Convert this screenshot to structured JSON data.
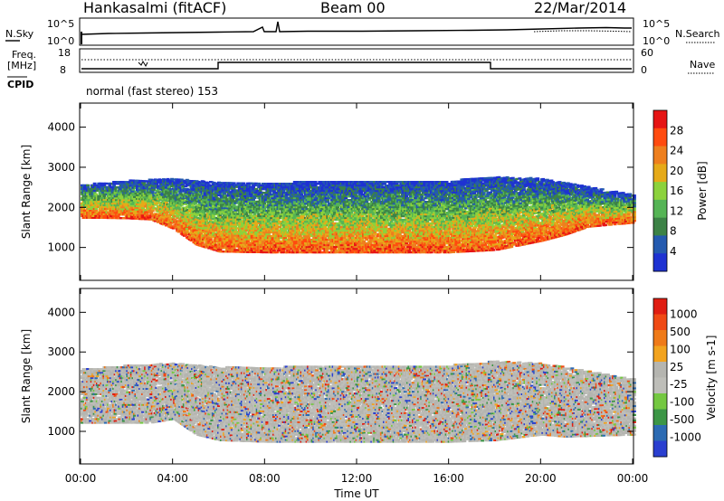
{
  "header": {
    "station": "Hankasalmi (fitACF)",
    "beam": "Beam 00",
    "date": "22/Mar/2014"
  },
  "noise_panel": {
    "left_label": "N.Sky",
    "left_top": "10^5",
    "left_bottom": "10^0",
    "right_top": "10^5",
    "right_bottom": "10^0",
    "right_label": "N.Search"
  },
  "freq_panel": {
    "label_line1": "Freq.",
    "label_line2": "[MHz]",
    "left_top": "18",
    "left_bottom": "8",
    "right_top": "60",
    "right_bottom": "0",
    "right_label": "Nave",
    "cpid_label": "CPID"
  },
  "mode_text": "normal (fast stereo) 153",
  "colors": {
    "power": [
      "#1e32d2",
      "#245aaf",
      "#3c8246",
      "#55b455",
      "#8cd23c",
      "#e6aa19",
      "#ee7f1e",
      "#ff4b0f",
      "#e61414"
    ],
    "velocity": [
      "#2a3fd0",
      "#2c6bb3",
      "#3c9646",
      "#74c841",
      "#bebeb9",
      "#b5b5b0",
      "#f2a31e",
      "#ef7a18",
      "#f04a14",
      "#e01d12"
    ]
  },
  "chart_data": [
    {
      "type": "heatmap",
      "name": "Power",
      "xlabel": "",
      "ylabel": "Slant Range [km]",
      "x_ticks": [
        "00:00",
        "04:00",
        "08:00",
        "12:00",
        "16:00",
        "20:00",
        "00:00"
      ],
      "x_tick_hours": [
        0,
        4,
        8,
        12,
        16,
        20,
        24
      ],
      "xlim_hours": [
        0,
        24
      ],
      "y_ticks": [
        1000,
        2000,
        3000,
        4000
      ],
      "ylim": [
        180,
        4600
      ],
      "colorbar_label": "Power [dB]",
      "colorbar_ticks": [
        4,
        8,
        12,
        16,
        20,
        24,
        28
      ],
      "colorbar_range": [
        0,
        32
      ],
      "echo_band_lower_km": [
        [
          0,
          1720
        ],
        [
          1,
          1720
        ],
        [
          2,
          1710
        ],
        [
          3,
          1680
        ],
        [
          4,
          1450
        ],
        [
          5,
          1050
        ],
        [
          6,
          880
        ],
        [
          8,
          860
        ],
        [
          12,
          860
        ],
        [
          16,
          860
        ],
        [
          18,
          920
        ],
        [
          20,
          1150
        ],
        [
          21,
          1300
        ],
        [
          22,
          1500
        ],
        [
          24,
          1600
        ]
      ],
      "echo_band_upper_km": [
        [
          0,
          2550
        ],
        [
          2,
          2650
        ],
        [
          4,
          2700
        ],
        [
          6,
          2600
        ],
        [
          8,
          2600
        ],
        [
          12,
          2650
        ],
        [
          16,
          2650
        ],
        [
          18,
          2750
        ],
        [
          20,
          2700
        ],
        [
          22,
          2500
        ],
        [
          24,
          2300
        ]
      ]
    },
    {
      "type": "heatmap",
      "name": "Velocity",
      "xlabel": "Time UT",
      "ylabel": "Slant Range [km]",
      "x_ticks": [
        "00:00",
        "04:00",
        "08:00",
        "12:00",
        "16:00",
        "20:00",
        "00:00"
      ],
      "x_tick_hours": [
        0,
        4,
        8,
        12,
        16,
        20,
        24
      ],
      "xlim_hours": [
        0,
        24
      ],
      "y_ticks": [
        1000,
        2000,
        3000,
        4000
      ],
      "ylim": [
        180,
        4600
      ],
      "colorbar_label": "Velocity [m s-1]",
      "colorbar_ticks": [
        "1000",
        "500",
        "100",
        "25",
        "-25",
        "-100",
        "-500",
        "-1000"
      ],
      "echo_band_lower_km": [
        [
          0,
          1200
        ],
        [
          3,
          1200
        ],
        [
          4,
          1300
        ],
        [
          5,
          900
        ],
        [
          6,
          760
        ],
        [
          8,
          720
        ],
        [
          12,
          720
        ],
        [
          16,
          720
        ],
        [
          18,
          760
        ],
        [
          20,
          900
        ],
        [
          21,
          850
        ],
        [
          24,
          900
        ]
      ],
      "echo_band_upper_km": [
        [
          0,
          2550
        ],
        [
          2,
          2650
        ],
        [
          4,
          2700
        ],
        [
          6,
          2600
        ],
        [
          8,
          2600
        ],
        [
          12,
          2650
        ],
        [
          16,
          2650
        ],
        [
          18,
          2750
        ],
        [
          20,
          2700
        ],
        [
          22,
          2500
        ],
        [
          24,
          2300
        ]
      ]
    }
  ]
}
